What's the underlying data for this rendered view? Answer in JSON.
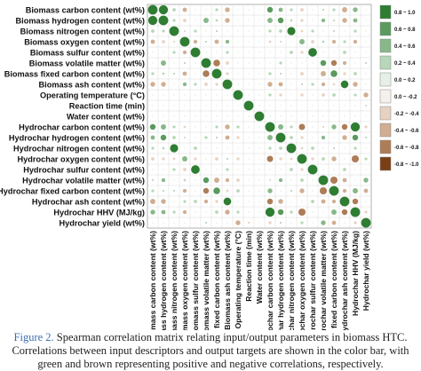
{
  "caption": {
    "figure_ref": "Figure 2.",
    "text": " Spearman correlation matrix relating input/output parameters in biomass HTC. Correlations between input descriptors and output targets are shown in the color bar, with green and brown representing positive and negative correlations, respectively."
  },
  "colors": {
    "positive": "#2f7d32",
    "negative": "#7b3f15",
    "grid": "#d9d9d9",
    "frame": "#9e9e9e"
  },
  "chart_data": {
    "type": "heatmap",
    "method": "Spearman correlation",
    "glyph": "circle",
    "variables": [
      "Biomass carbon content (wt%)",
      "Biomass hydrogen content (wt%)",
      "Biomass nitrogen content (wt%)",
      "Biomass oxygen content (wt%)",
      "Biomass sulfur content (wt%)",
      "Biomass volatile matter (wt%)",
      "Biomass fixed carbon content (wt%)",
      "Biomass ash content (wt%)",
      "Operating temperature (°C)",
      "Reaction time (min)",
      "Water content (wt%)",
      "Hydrochar carbon content (wt%)",
      "Hydrochar hydrogen content (wt%)",
      "Hydrochar nitrogen content (wt%)",
      "Hydrochar oxygen content (wt%)",
      "Hydrochar sulfur content (wt%)",
      "Hydrochar volatile matter (wt%)",
      "Hydrochar fixed carbon content (wt%)",
      "Hydrochar ash content (wt%)",
      "Hydrochar HHV (MJ/kg)",
      "Hydrochar yield (wt%)"
    ],
    "colorbar": {
      "range": [
        -1.0,
        1.0
      ],
      "bins": [
        {
          "label": "0.8 ~ 1.0",
          "color": "#2e7d32"
        },
        {
          "label": "0.6 ~ 0.8",
          "color": "#5a9a5c"
        },
        {
          "label": "0.4 ~ 0.6",
          "color": "#88b889"
        },
        {
          "label": "0.2 ~ 0.4",
          "color": "#b8d6b8"
        },
        {
          "label": "0.0 ~ 0.2",
          "color": "#e6f0e6"
        },
        {
          "label": "0.0 ~ -0.2",
          "color": "#f6efea"
        },
        {
          "label": "-0.2 ~ -0.4",
          "color": "#e7d2c2"
        },
        {
          "label": "-0.4 ~ -0.6",
          "color": "#d1ae92"
        },
        {
          "label": "-0.6 ~ -0.8",
          "color": "#ad7d58"
        },
        {
          "label": "-0.8 ~ -1.0",
          "color": "#7b3f15"
        }
      ]
    },
    "values": [
      [
        1.0,
        0.95,
        0.35,
        -0.45,
        0.05,
        0.05,
        0.3,
        -0.5,
        0.0,
        0.0,
        -0.05,
        0.6,
        0.45,
        0.3,
        -0.35,
        0.0,
        0.2,
        0.3,
        -0.55,
        0.5,
        0.1
      ],
      [
        0.95,
        1.0,
        0.3,
        -0.35,
        0.15,
        0.55,
        0.25,
        -0.5,
        0.0,
        0.0,
        -0.05,
        0.55,
        0.6,
        0.25,
        -0.3,
        0.1,
        0.4,
        0.2,
        -0.5,
        0.45,
        0.15
      ],
      [
        0.35,
        0.3,
        1.0,
        -0.2,
        0.3,
        0.15,
        0.2,
        -0.1,
        0.0,
        0.0,
        0.0,
        0.3,
        0.35,
        0.85,
        -0.25,
        0.3,
        0.15,
        0.2,
        -0.1,
        0.3,
        0.05
      ],
      [
        -0.45,
        -0.35,
        -0.2,
        1.0,
        -0.4,
        0.2,
        -0.45,
        0.4,
        0.0,
        0.0,
        0.0,
        -0.25,
        -0.2,
        -0.15,
        0.55,
        -0.35,
        0.25,
        -0.4,
        0.3,
        -0.4,
        0.05
      ],
      [
        0.05,
        0.15,
        0.3,
        -0.4,
        1.0,
        0.05,
        0.1,
        0.3,
        0.0,
        0.0,
        0.0,
        0.1,
        0.15,
        0.35,
        -0.3,
        0.9,
        0.05,
        0.1,
        0.35,
        0.1,
        -0.05
      ],
      [
        0.05,
        0.55,
        0.15,
        0.2,
        0.05,
        1.0,
        -0.7,
        -0.35,
        0.0,
        0.0,
        0.0,
        0.05,
        0.3,
        0.1,
        0.1,
        0.05,
        0.6,
        -0.6,
        -0.4,
        0.1,
        0.2
      ],
      [
        0.3,
        0.25,
        0.2,
        -0.45,
        0.1,
        -0.7,
        1.0,
        -0.3,
        0.0,
        0.0,
        0.0,
        0.3,
        0.2,
        0.15,
        -0.35,
        0.1,
        -0.55,
        0.7,
        -0.3,
        0.35,
        0.0
      ],
      [
        -0.5,
        -0.5,
        -0.1,
        0.4,
        0.3,
        -0.35,
        -0.3,
        1.0,
        0.0,
        0.0,
        0.0,
        -0.5,
        -0.45,
        -0.05,
        0.2,
        0.3,
        -0.4,
        -0.25,
        0.8,
        -0.5,
        0.1
      ],
      [
        0.0,
        0.0,
        0.0,
        0.0,
        0.0,
        0.0,
        0.0,
        0.0,
        1.0,
        0.05,
        0.0,
        0.3,
        -0.3,
        -0.05,
        -0.3,
        0.0,
        -0.35,
        0.35,
        0.1,
        0.3,
        -0.5
      ],
      [
        0.0,
        0.0,
        0.0,
        0.0,
        0.0,
        0.0,
        0.0,
        0.0,
        0.05,
        1.0,
        0.0,
        0.1,
        -0.1,
        0.0,
        -0.1,
        0.0,
        -0.1,
        0.1,
        0.05,
        0.1,
        -0.2
      ],
      [
        -0.05,
        -0.05,
        0.0,
        0.0,
        0.0,
        0.0,
        0.0,
        0.0,
        0.0,
        0.0,
        1.0,
        0.05,
        0.0,
        0.0,
        -0.05,
        0.0,
        0.0,
        0.05,
        0.0,
        0.05,
        -0.1
      ],
      [
        0.6,
        0.55,
        0.3,
        -0.25,
        0.1,
        0.05,
        0.3,
        -0.5,
        0.3,
        0.1,
        0.05,
        1.0,
        0.55,
        0.3,
        -0.65,
        0.1,
        -0.2,
        0.5,
        -0.6,
        0.95,
        -0.3
      ],
      [
        0.45,
        0.6,
        0.35,
        -0.2,
        0.15,
        0.3,
        0.2,
        -0.45,
        -0.3,
        -0.1,
        0.0,
        0.55,
        1.0,
        0.35,
        -0.3,
        0.15,
        0.4,
        0.1,
        -0.5,
        0.6,
        0.2
      ],
      [
        0.3,
        0.25,
        0.85,
        -0.15,
        0.35,
        0.1,
        0.15,
        -0.05,
        -0.05,
        0.0,
        0.0,
        0.3,
        0.35,
        1.0,
        -0.25,
        0.35,
        0.1,
        0.2,
        -0.05,
        0.3,
        0.0
      ],
      [
        -0.35,
        -0.3,
        -0.25,
        0.55,
        -0.3,
        0.1,
        -0.35,
        0.2,
        -0.3,
        -0.1,
        -0.05,
        -0.65,
        -0.3,
        -0.25,
        1.0,
        -0.3,
        0.35,
        -0.5,
        0.05,
        -0.75,
        0.3
      ],
      [
        0.0,
        0.1,
        0.3,
        -0.35,
        0.9,
        0.05,
        0.1,
        0.3,
        0.0,
        0.0,
        0.0,
        0.1,
        0.15,
        0.35,
        -0.3,
        1.0,
        0.0,
        0.1,
        0.35,
        0.1,
        -0.05
      ],
      [
        0.2,
        0.4,
        0.15,
        0.25,
        0.05,
        0.6,
        -0.55,
        -0.4,
        -0.35,
        -0.1,
        0.0,
        -0.2,
        0.4,
        0.1,
        0.35,
        0.0,
        1.0,
        -0.75,
        -0.45,
        -0.15,
        0.5
      ],
      [
        0.3,
        0.2,
        0.2,
        -0.4,
        0.1,
        -0.6,
        0.7,
        -0.25,
        0.35,
        0.1,
        0.05,
        0.5,
        0.1,
        0.2,
        -0.5,
        0.1,
        -0.75,
        1.0,
        -0.4,
        0.55,
        -0.45
      ],
      [
        -0.55,
        -0.5,
        -0.1,
        0.3,
        0.35,
        -0.4,
        -0.3,
        0.8,
        0.1,
        0.05,
        0.0,
        -0.6,
        -0.5,
        -0.05,
        0.05,
        0.35,
        -0.45,
        -0.4,
        1.0,
        -0.6,
        0.0
      ],
      [
        0.5,
        0.45,
        0.3,
        -0.4,
        0.1,
        0.1,
        0.35,
        -0.5,
        0.3,
        0.1,
        0.05,
        0.95,
        0.6,
        0.3,
        -0.75,
        0.1,
        -0.15,
        0.55,
        -0.6,
        1.0,
        -0.3
      ],
      [
        0.1,
        0.15,
        0.05,
        0.05,
        -0.05,
        0.2,
        0.0,
        0.1,
        -0.5,
        -0.2,
        -0.1,
        -0.3,
        0.2,
        0.0,
        0.3,
        -0.05,
        0.5,
        -0.45,
        0.0,
        -0.3,
        1.0
      ]
    ]
  }
}
